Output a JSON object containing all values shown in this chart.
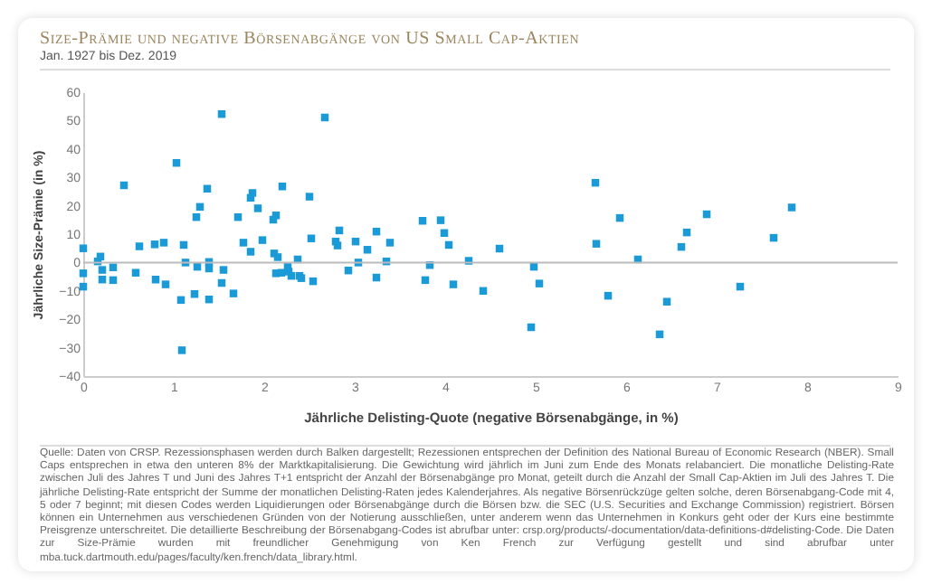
{
  "chart_data": {
    "type": "scatter",
    "title": "Size-Prämie und negative Börsenabgänge von US Small Cap-Aktien",
    "subtitle": "Jan. 1927 bis Dez. 2019",
    "xlabel": "Jährliche Delisting-Quote (negative Börsenabgänge, in %)",
    "ylabel": "Jährliche Size-Prämie (in %)",
    "series": [
      {
        "color": "#1a9ad6",
        "x": [
          0,
          0,
          0,
          0.16,
          0.19,
          0.21,
          0.21,
          0.33,
          0.33,
          0.45,
          0.58,
          0.62,
          0.79,
          0.8,
          0.89,
          0.91,
          1.03,
          1.08,
          1.09,
          1.11,
          1.13,
          1.23,
          1.25,
          1.26,
          1.29,
          1.37,
          1.39,
          1.39,
          1.39,
          1.53,
          1.53,
          1.55,
          1.66,
          1.71,
          1.77,
          1.85,
          1.87,
          1.85,
          1.93,
          1.98,
          2.1,
          2.13,
          2.11,
          2.15,
          2.13,
          2.19,
          2.2,
          2.26,
          2.27,
          2.3,
          2.37,
          2.39,
          2.41,
          2.5,
          2.52,
          2.54,
          2.67,
          2.79,
          2.81,
          2.83,
          2.93,
          3.01,
          3.04,
          3.14,
          3.24,
          3.24,
          3.35,
          3.39,
          3.75,
          3.78,
          3.83,
          3.95,
          3.99,
          4.04,
          4.09,
          4.26,
          4.42,
          4.6,
          4.98,
          4.95,
          5.04,
          5.66,
          5.67,
          5.8,
          5.93,
          6.13,
          6.37,
          6.45,
          6.61,
          6.67,
          6.89,
          7.26,
          7.63,
          7.83
        ],
        "values": [
          5,
          -3.8,
          -8.5,
          0.4,
          2.1,
          -6,
          -2.6,
          -1.7,
          -6.2,
          27.2,
          -3.6,
          5.7,
          6.4,
          -6,
          7,
          -7.7,
          35.1,
          -13.2,
          -30.9,
          6.2,
          0,
          -11.1,
          16,
          -1.5,
          19.6,
          26,
          0.2,
          -2.1,
          -13,
          52.3,
          -7.2,
          -2.6,
          -10.9,
          16,
          7,
          22.8,
          24.5,
          3.8,
          19.1,
          7.9,
          15.1,
          16.6,
          3.2,
          1.9,
          -3.8,
          -3.6,
          26.8,
          -1.3,
          -3.2,
          -4.7,
          1.1,
          -4.7,
          -5.5,
          23.2,
          8.5,
          -6.6,
          51.1,
          7.4,
          6,
          11.3,
          -2.8,
          7.4,
          0,
          4.5,
          10.9,
          -5.3,
          0.4,
          7,
          14.7,
          -6.2,
          -0.9,
          14.9,
          10.4,
          6.2,
          -7.7,
          0.6,
          -10,
          4.9,
          -1.5,
          -22.8,
          -7.4,
          28.1,
          6.6,
          -11.7,
          15.7,
          1.1,
          -25.3,
          -13.8,
          5.5,
          10.6,
          17,
          -8.5,
          8.7,
          19.4
        ]
      }
    ],
    "marker": "square",
    "xlim": [
      0,
      9
    ],
    "xticks": [
      0,
      1,
      2,
      3,
      4,
      5,
      6,
      7,
      8,
      9
    ],
    "ylim": [
      -40,
      60
    ],
    "yticks": [
      -40,
      -30,
      -20,
      -10,
      0,
      10,
      20,
      30,
      40,
      50,
      60
    ],
    "ref_lines": [
      {
        "axis": "y",
        "value": 0,
        "color": "#bbbbbb"
      }
    ],
    "annotations": [
      "Quelle: Daten von CRSP. Rezessionsphasen werden durch Balken dargestellt; Rezessionen entsprechen der Definition des National Bureau of Economic Research (NBER). Small Caps entsprechen in etwa den unteren 8% der Marktkapitalisierung. Die Gewichtung wird jährlich im Juni zum Ende des Monats relabanciert. Die monatliche Delisting-Rate zwischen Juli des Jahres T und Juni des Jahres T+1 entspricht der Anzahl der Börsenabgänge pro Monat, geteilt durch die Anzahl der Small Cap-Aktien im Juli des Jahres T. Die jährliche Delisting-Rate entspricht der Summe der monatlichen Delisting-Raten jedes Kalenderjahres. Als negative Börsenrückzüge gelten solche, deren Börsenabgang-Code mit 4, 5 oder 7 beginnt; mit diesen Codes werden Liquidierungen oder Börsenabgänge durch die Börsen bzw. die SEC (U.S. Securities and Exchange Commission) registriert. Börsen können ein Unternehmen aus verschiedenen Gründen von der Notierung ausschließen, unter anderem wenn das Unternehmen in Konkurs geht oder der Kurs eine bestimmte Preisgrenze unterschreitet. Die detaillierte Beschreibung der Börsenabgang-Codes ist abrufbar unter: crsp.org/products/-documentation/data-definitions-d#delisting-Code. Die Daten zur Size-Prämie wurden mit freundlicher Genehmigung von Ken French zur Verfügung gestellt und sind abrufbar unter mba.tuck.dartmouth.edu/pages/faculty/ken.french/data_library.html."
    ]
  }
}
